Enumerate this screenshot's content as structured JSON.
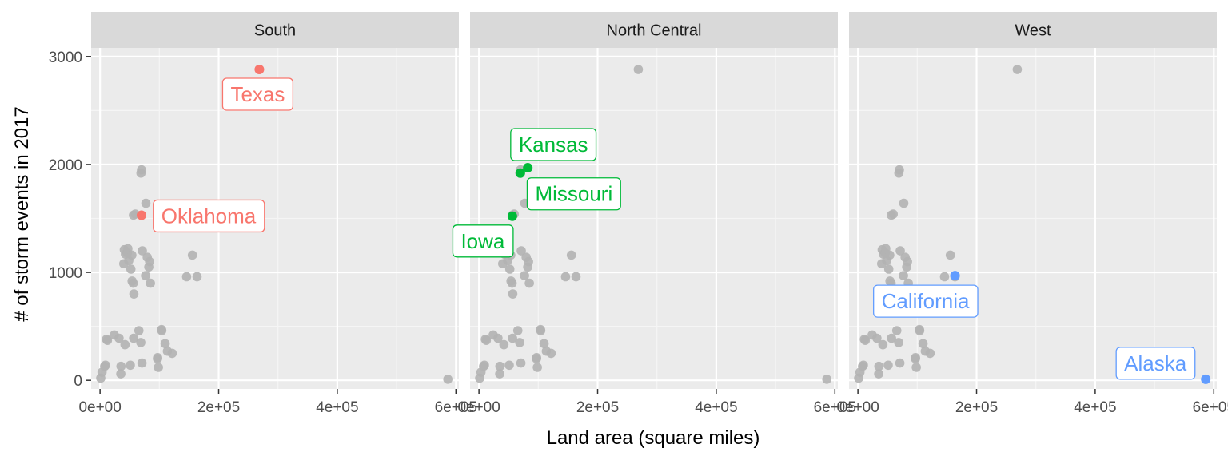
{
  "chart_data": {
    "type": "scatter",
    "xlabel": "Land area (square miles)",
    "ylabel": "# of storm events in 2017",
    "xlim": [
      -15000,
      605000
    ],
    "ylim": [
      -80,
      3080
    ],
    "x_ticks": [
      0,
      200000,
      400000,
      600000
    ],
    "x_tick_labels": [
      "0e+00",
      "2e+05",
      "4e+05",
      "6e+05"
    ],
    "y_ticks": [
      0,
      1000,
      2000,
      3000
    ],
    "y_tick_labels": [
      "0",
      "1000",
      "2000",
      "3000"
    ],
    "grid": true,
    "facet_labels": [
      "South",
      "North Central",
      "West"
    ],
    "background_points": {
      "color": "#b3b3b3",
      "x": [
        1200,
        3400,
        7800,
        9200,
        10900,
        12400,
        24000,
        32000,
        35000,
        35300,
        40000,
        40900,
        42100,
        42800,
        46000,
        46900,
        48400,
        51000,
        52000,
        53600,
        54000,
        55900,
        56300,
        56600,
        57000,
        59400,
        65500,
        68700,
        69000,
        69900,
        70700,
        71300,
        76800,
        77300,
        79600,
        82200,
        83600,
        84900,
        96900,
        97100,
        98400,
        103700,
        104100,
        109800,
        113600,
        121600,
        146000,
        155800,
        163600,
        268600,
        586400
      ],
      "y": [
        20,
        75,
        130,
        140,
        380,
        370,
        420,
        390,
        60,
        130,
        1080,
        1210,
        330,
        1170,
        1180,
        1220,
        1110,
        140,
        1030,
        1160,
        920,
        900,
        1530,
        390,
        800,
        1540,
        460,
        350,
        1920,
        1950,
        160,
        1200,
        970,
        1640,
        1140,
        1050,
        1100,
        900,
        200,
        210,
        120,
        470,
        460,
        340,
        270,
        250,
        960,
        1160,
        960,
        2880,
        10
      ]
    },
    "series": [
      {
        "name": "South",
        "color": "#f8766d",
        "points": [
          {
            "label": "Texas",
            "x": 268600,
            "y": 2880
          },
          {
            "label": "Oklahoma",
            "x": 69900,
            "y": 1530
          }
        ]
      },
      {
        "name": "North Central",
        "color": "#00ba38",
        "points": [
          {
            "label": "Kansas",
            "x": 82300,
            "y": 1970
          },
          {
            "label": "Missouri",
            "x": 69700,
            "y": 1920
          },
          {
            "label": "Iowa",
            "x": 56300,
            "y": 1520
          }
        ]
      },
      {
        "name": "West",
        "color": "#619cff",
        "points": [
          {
            "label": "California",
            "x": 163700,
            "y": 970
          },
          {
            "label": "Alaska",
            "x": 586400,
            "y": 10
          }
        ]
      }
    ]
  }
}
